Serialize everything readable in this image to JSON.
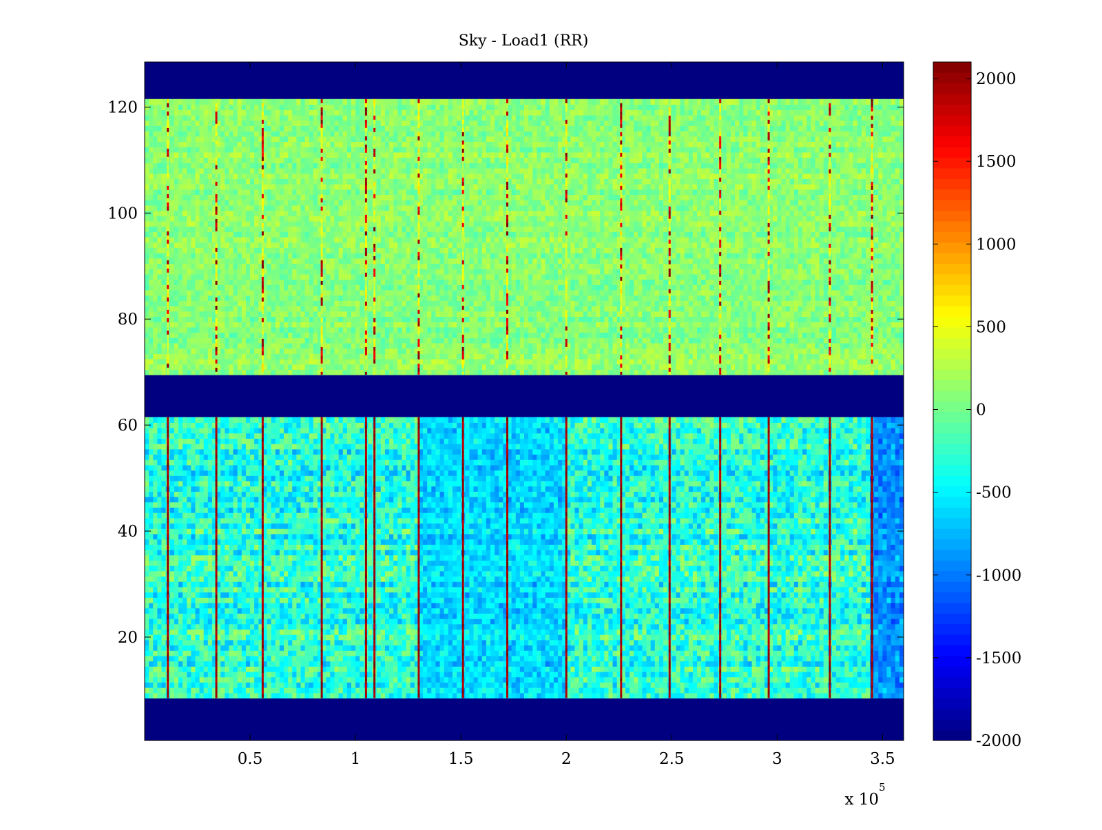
{
  "chart_data": {
    "type": "heatmap",
    "title": "Sky - Load1 (RR)",
    "xlabel": "",
    "ylabel": "",
    "x_multiplier_label": "x 10",
    "x_multiplier_exponent": "5",
    "xlim": [
      0,
      360000
    ],
    "ylim": [
      1,
      128
    ],
    "x_ticks": [
      50000,
      100000,
      150000,
      200000,
      250000,
      300000,
      350000
    ],
    "x_tick_labels": [
      "0.5",
      "1",
      "1.5",
      "2",
      "2.5",
      "3",
      "3.5"
    ],
    "y_ticks": [
      20,
      40,
      60,
      80,
      100,
      120
    ],
    "y_tick_labels": [
      "20",
      "40",
      "60",
      "80",
      "100",
      "120"
    ],
    "colorbar": {
      "colormap": "jet",
      "clim": [
        -2000,
        2100
      ],
      "ticks": [
        2000,
        1500,
        1000,
        500,
        0,
        -500,
        -1000,
        -1500,
        -2000
      ],
      "tick_labels": [
        "2000",
        "1500",
        "1000",
        "500",
        "0",
        "-500",
        "-1000",
        "-1500",
        "-2000"
      ]
    },
    "blank_row_bands": [
      {
        "rows": [
          1,
          8
        ],
        "value": -2000
      },
      {
        "rows": [
          62,
          69
        ],
        "value": -2000
      },
      {
        "rows": [
          122,
          128
        ],
        "value": -2000
      }
    ],
    "data_row_bands": [
      {
        "rows": [
          9,
          61
        ],
        "typical_value": -300,
        "spread": 500
      },
      {
        "rows": [
          70,
          121
        ],
        "typical_value": 100,
        "spread": 250
      }
    ],
    "spike_columns_x": [
      11000,
      34000,
      56000,
      84000,
      105000,
      109000,
      130000,
      151000,
      172000,
      200000,
      226000,
      249000,
      273000,
      296000,
      325000,
      345000
    ],
    "spike_value": 2100,
    "low_regions": [
      {
        "x": [
          130000,
          200000
        ],
        "rows": [
          9,
          61
        ],
        "value": -900
      },
      {
        "x": [
          345000,
          360000
        ],
        "rows": [
          9,
          61
        ],
        "value": -1500
      }
    ]
  }
}
